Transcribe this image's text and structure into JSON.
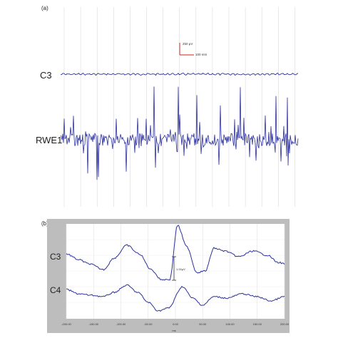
{
  "panel_a": {
    "label": "(a)",
    "scale_bar": {
      "amplitude": "250 μV",
      "time": "100 mm"
    },
    "chart_data": {
      "type": "line",
      "series": [
        {
          "name": "C3"
        },
        {
          "name": "RWE1"
        }
      ],
      "grid": true
    }
  },
  "panel_b": {
    "label": "(b)",
    "chart_data": {
      "type": "line",
      "series": [
        {
          "name": "C3"
        },
        {
          "name": "C4"
        }
      ],
      "x_ticks": [
        "-200.00",
        "-150.00",
        "-100.00",
        "-50.00",
        "0.00",
        "50.00",
        "100.00",
        "150.00",
        "200.00"
      ],
      "xlabel": "ms",
      "xlim": [
        -200,
        200
      ],
      "annotation": "1.00μV",
      "grid": true
    }
  },
  "colors": {
    "trace": "#2b2f9e",
    "scale_bar": "#cc2222",
    "frame": "#bdbdbd"
  }
}
